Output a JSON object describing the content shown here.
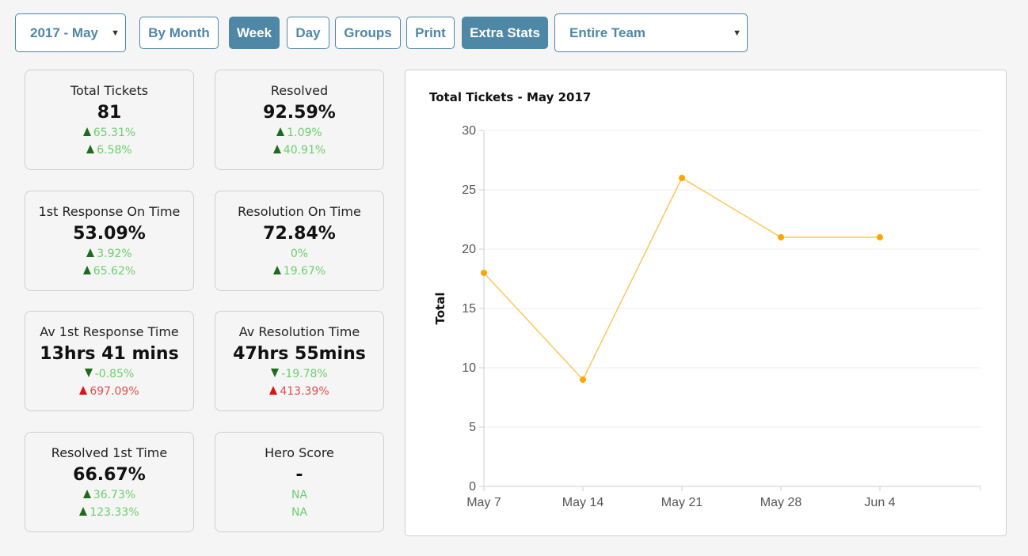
{
  "toolbar": {
    "period_select": "2017 - May",
    "by_month": "By Month",
    "week": "Week",
    "day": "Day",
    "groups": "Groups",
    "print": "Print",
    "extra_stats": "Extra Stats",
    "team_select": "Entire Team",
    "active_button": "Week",
    "caret": "▼"
  },
  "stats": [
    {
      "label": "Total Tickets",
      "value": "81",
      "d1": {
        "text": "65.31%",
        "arrow": "up-green",
        "color": "positive"
      },
      "d2": {
        "text": "6.58%",
        "arrow": "up-green",
        "color": "positive"
      }
    },
    {
      "label": "Resolved",
      "value": "92.59%",
      "d1": {
        "text": "1.09%",
        "arrow": "up-green",
        "color": "positive"
      },
      "d2": {
        "text": "40.91%",
        "arrow": "up-green",
        "color": "positive"
      }
    },
    {
      "label": "1st Response On Time",
      "value": "53.09%",
      "d1": {
        "text": "3.92%",
        "arrow": "up-green",
        "color": "positive"
      },
      "d2": {
        "text": "65.62%",
        "arrow": "up-green",
        "color": "positive"
      }
    },
    {
      "label": "Resolution On Time",
      "value": "72.84%",
      "d1": {
        "text": "0%",
        "arrow": "none",
        "color": "positive"
      },
      "d2": {
        "text": "19.67%",
        "arrow": "up-green",
        "color": "positive"
      }
    },
    {
      "label": "Av 1st Response Time",
      "value": "13hrs 41 mins",
      "d1": {
        "text": "-0.85%",
        "arrow": "down-green",
        "color": "positive"
      },
      "d2": {
        "text": "697.09%",
        "arrow": "up-red",
        "color": "negative"
      }
    },
    {
      "label": "Av Resolution Time",
      "value": "47hrs 55mins",
      "d1": {
        "text": "-19.78%",
        "arrow": "down-green",
        "color": "positive"
      },
      "d2": {
        "text": "413.39%",
        "arrow": "up-red",
        "color": "negative"
      }
    },
    {
      "label": "Resolved 1st Time",
      "value": "66.67%",
      "d1": {
        "text": "36.73%",
        "arrow": "up-green",
        "color": "positive"
      },
      "d2": {
        "text": "123.33%",
        "arrow": "up-green",
        "color": "positive"
      }
    },
    {
      "label": "Hero Score",
      "value": "-",
      "d1": {
        "text": "NA",
        "arrow": "none",
        "color": "positive"
      },
      "d2": {
        "text": "NA",
        "arrow": "none",
        "color": "positive"
      }
    }
  ],
  "colors": {
    "accent": "#4f87a6",
    "positive": "#6ccf6c",
    "negative": "#e05050",
    "line": "#ffc658",
    "point": "#ffa500"
  },
  "chart_data": {
    "type": "line",
    "title": "Total Tickets - May 2017",
    "ylabel": "Total",
    "xlabel": "",
    "categories": [
      "May 7",
      "May 14",
      "May 21",
      "May 28",
      "Jun 4"
    ],
    "values": [
      18,
      9,
      26,
      21,
      21
    ],
    "ylim": [
      0,
      30
    ],
    "yticks": [
      0,
      5,
      10,
      15,
      20,
      25,
      30
    ],
    "grid": true,
    "legend": "none"
  }
}
